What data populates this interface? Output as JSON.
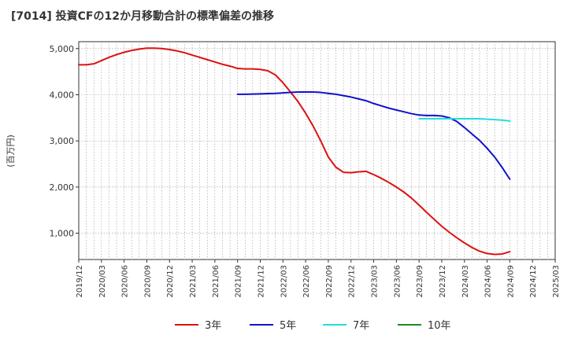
{
  "title": "[7014]  投資CFの12か月移動合計の標準偏差の推移",
  "chart_data": {
    "type": "line",
    "title": "[7014]  投資CFの12か月移動合計の標準偏差の推移",
    "ylabel": "(百万円)",
    "xlabel": "",
    "ylim": [
      430,
      5150
    ],
    "yticks": [
      1000,
      2000,
      3000,
      4000,
      5000
    ],
    "ytick_labels": [
      "1,000",
      "2,000",
      "3,000",
      "4,000",
      "5,000"
    ],
    "xticks": [
      "2019/12",
      "2020/03",
      "2020/06",
      "2020/09",
      "2020/12",
      "2021/03",
      "2021/06",
      "2021/09",
      "2021/12",
      "2022/03",
      "2022/06",
      "2022/09",
      "2022/12",
      "2023/03",
      "2023/06",
      "2023/09",
      "2023/12",
      "2024/03",
      "2024/06",
      "2024/09",
      "2024/12",
      "2025/03"
    ],
    "grid": true,
    "legend_position": "bottom",
    "series": [
      {
        "name": "3年",
        "color": "#dd1111",
        "x": [
          "2019/12",
          "2020/01",
          "2020/02",
          "2020/03",
          "2020/04",
          "2020/05",
          "2020/06",
          "2020/07",
          "2020/08",
          "2020/09",
          "2020/10",
          "2020/11",
          "2020/12",
          "2021/01",
          "2021/02",
          "2021/03",
          "2021/04",
          "2021/05",
          "2021/06",
          "2021/07",
          "2021/08",
          "2021/09",
          "2021/10",
          "2021/11",
          "2021/12",
          "2022/01",
          "2022/02",
          "2022/03",
          "2022/04",
          "2022/05",
          "2022/06",
          "2022/07",
          "2022/08",
          "2022/09",
          "2022/10",
          "2022/11",
          "2022/12",
          "2023/01",
          "2023/02",
          "2023/03",
          "2023/04",
          "2023/05",
          "2023/06",
          "2023/07",
          "2023/08",
          "2023/09",
          "2023/10",
          "2023/11",
          "2023/12",
          "2024/01",
          "2024/02",
          "2024/03",
          "2024/04",
          "2024/05",
          "2024/06",
          "2024/07",
          "2024/08",
          "2024/09"
        ],
        "values": [
          4650,
          4650,
          4670,
          4740,
          4810,
          4870,
          4920,
          4960,
          4990,
          5010,
          5010,
          5000,
          4980,
          4950,
          4910,
          4860,
          4810,
          4760,
          4710,
          4660,
          4620,
          4570,
          4560,
          4560,
          4550,
          4520,
          4430,
          4260,
          4060,
          3850,
          3600,
          3320,
          3000,
          2650,
          2430,
          2320,
          2310,
          2330,
          2340,
          2270,
          2190,
          2100,
          2000,
          1890,
          1760,
          1610,
          1450,
          1300,
          1150,
          1020,
          900,
          790,
          690,
          610,
          560,
          540,
          550,
          600
        ]
      },
      {
        "name": "5年",
        "color": "#1111cc",
        "x": [
          "2021/09",
          "2021/10",
          "2021/11",
          "2021/12",
          "2022/01",
          "2022/02",
          "2022/03",
          "2022/04",
          "2022/05",
          "2022/06",
          "2022/07",
          "2022/08",
          "2022/09",
          "2022/10",
          "2022/11",
          "2022/12",
          "2023/01",
          "2023/02",
          "2023/03",
          "2023/04",
          "2023/05",
          "2023/06",
          "2023/07",
          "2023/08",
          "2023/09",
          "2023/10",
          "2023/11",
          "2023/12",
          "2024/01",
          "2024/02",
          "2024/03",
          "2024/04",
          "2024/05",
          "2024/06",
          "2024/07",
          "2024/08",
          "2024/09"
        ],
        "values": [
          4010,
          4010,
          4015,
          4020,
          4025,
          4030,
          4040,
          4050,
          4060,
          4060,
          4060,
          4050,
          4030,
          4010,
          3980,
          3950,
          3910,
          3870,
          3810,
          3760,
          3710,
          3670,
          3630,
          3590,
          3560,
          3550,
          3550,
          3540,
          3500,
          3420,
          3290,
          3150,
          3010,
          2840,
          2650,
          2420,
          2170
        ]
      },
      {
        "name": "7年",
        "color": "#22dddd",
        "x": [
          "2023/09",
          "2023/10",
          "2023/11",
          "2023/12",
          "2024/01",
          "2024/02",
          "2024/03",
          "2024/04",
          "2024/05",
          "2024/06",
          "2024/07",
          "2024/08",
          "2024/09"
        ],
        "values": [
          3480,
          3480,
          3480,
          3480,
          3480,
          3480,
          3480,
          3480,
          3480,
          3470,
          3460,
          3450,
          3430
        ]
      },
      {
        "name": "10年",
        "color": "#228822",
        "x": [],
        "values": []
      }
    ]
  }
}
